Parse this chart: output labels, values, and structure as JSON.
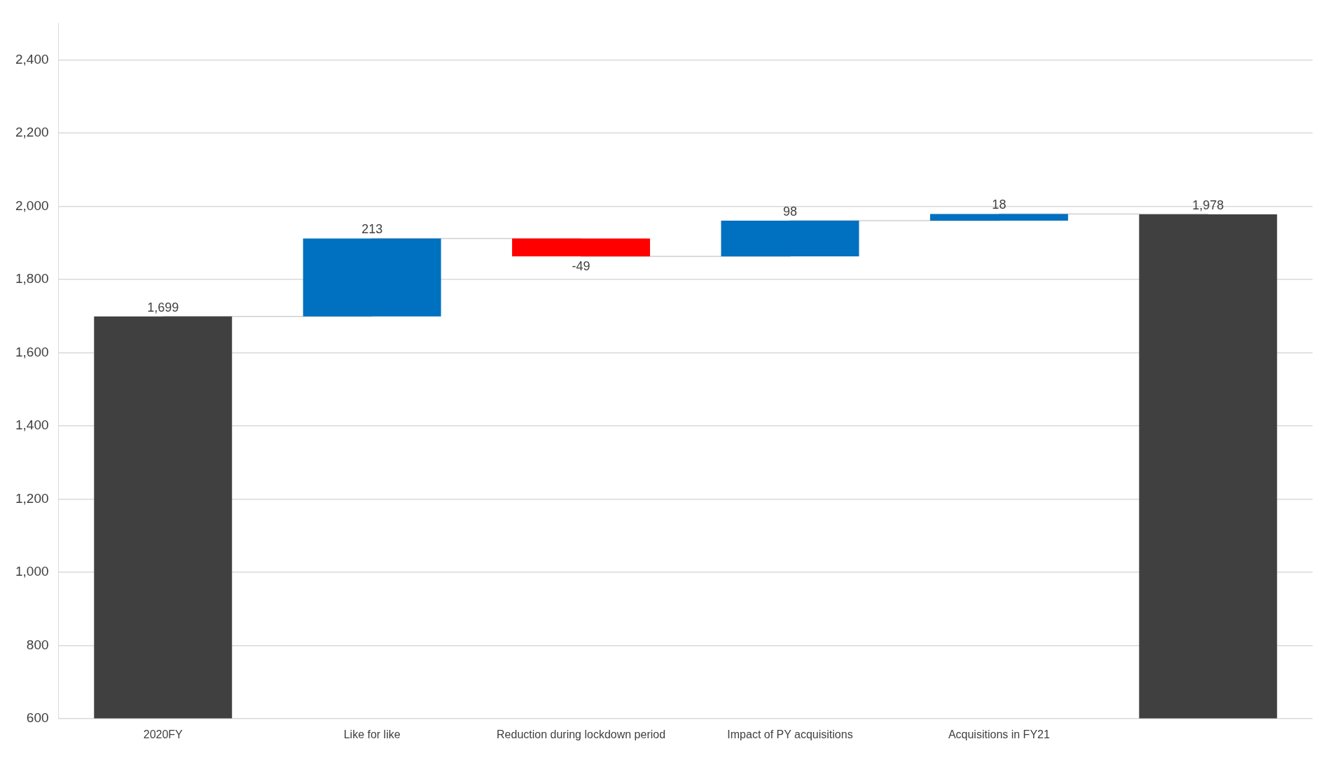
{
  "chart_data": {
    "type": "bar",
    "categories": [
      "2020FY",
      "Like for like",
      "Reduction during lockdown period",
      "Impact of PY acquisitions",
      "Acquisitions in FY21",
      null
    ],
    "series": [
      {
        "values": [
          1699,
          213,
          -49,
          98,
          18,
          1978
        ],
        "base": [
          null,
          1699,
          1912,
          1863,
          1961,
          null
        ],
        "colors": [
          "#404040",
          "#0070c0",
          "#ff0000",
          "#0070c0",
          "#0070c0",
          "#404040"
        ],
        "value_labels": [
          "1,699",
          "213",
          "-49",
          "98",
          "18",
          "1,978"
        ]
      },
      {
        "type": "step",
        "color": "#d0d0d0",
        "values": [
          1699,
          1912,
          1863,
          1961,
          1979,
          1979
        ]
      }
    ],
    "ylim": [
      600,
      2500
    ],
    "yticks": [
      {
        "value": 600,
        "label": "600"
      },
      {
        "value": 800,
        "label": "800"
      },
      {
        "value": 1000,
        "label": "1,000"
      },
      {
        "value": 1200,
        "label": "1,200"
      },
      {
        "value": 1400,
        "label": "1,400"
      },
      {
        "value": 1600,
        "label": "1,600"
      },
      {
        "value": 1800,
        "label": "1,800"
      },
      {
        "value": 2000,
        "label": "2,000"
      },
      {
        "value": 2200,
        "label": "2,200"
      },
      {
        "value": 2400,
        "label": "2,400"
      }
    ],
    "grid": "y",
    "legend": false
  }
}
